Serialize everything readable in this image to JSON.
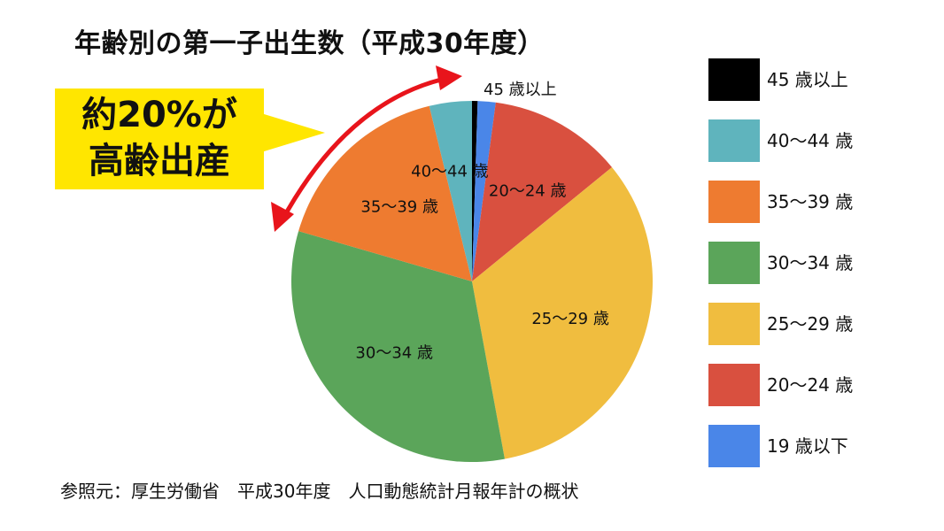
{
  "title": "年齢別の第一子出生数（平成30年度）",
  "callout": {
    "line1": "約20%が",
    "line2": "高齢出産",
    "color": "#ffe600",
    "arrow_color": "#e8141b"
  },
  "source": "参照元：厚生労働省　平成30年度　人口動態統計月報年計の概状",
  "chart_data": {
    "type": "pie",
    "title": "年齢別の第一子出生数（平成30年度）",
    "start": "12 o'clock, clockwise",
    "slices": [
      {
        "label": "45 歳以上",
        "value": 0.5,
        "color": "#000000"
      },
      {
        "label": "19 歳以下",
        "value": 1.6,
        "color": "#4a86e8"
      },
      {
        "label": "20～24 歳",
        "value": 12.0,
        "color": "#d9503f"
      },
      {
        "label": "25～29 歳",
        "value": 33.0,
        "color": "#f0bd3f"
      },
      {
        "label": "30～34 歳",
        "value": 32.4,
        "color": "#5ba55a"
      },
      {
        "label": "35～39 歳",
        "value": 16.7,
        "color": "#ee7b30"
      },
      {
        "label": "40～44 歳",
        "value": 3.8,
        "color": "#5fb4bd"
      }
    ],
    "legend": {
      "position": "right",
      "items": [
        {
          "label": "45 歳以上",
          "color": "#000000"
        },
        {
          "label": "40～44 歳",
          "color": "#5fb4bd"
        },
        {
          "label": "35～39 歳",
          "color": "#ee7b30"
        },
        {
          "label": "30～34 歳",
          "color": "#5ba55a"
        },
        {
          "label": "25～29 歳",
          "color": "#f0bd3f"
        },
        {
          "label": "20～24 歳",
          "color": "#d9503f"
        },
        {
          "label": "19 歳以下",
          "color": "#4a86e8"
        }
      ]
    }
  }
}
